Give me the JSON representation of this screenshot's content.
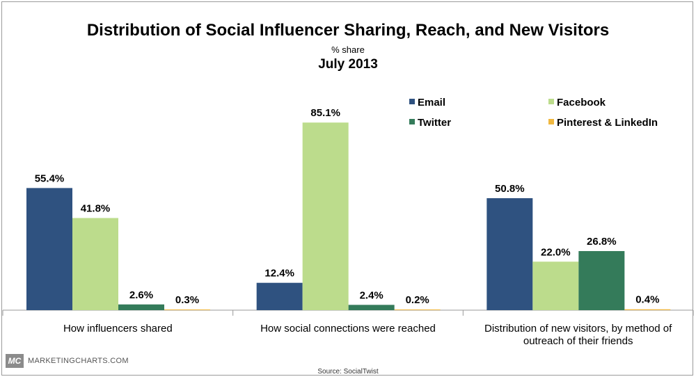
{
  "chart_data": {
    "type": "bar",
    "title": "Distribution of Social Influencer Sharing, Reach, and New Visitors",
    "subtitle": "% share",
    "subtitle2": "July 2013",
    "categories": [
      [
        "How influencers shared"
      ],
      [
        "How social connections were reached"
      ],
      [
        "Distribution of new visitors, by method of",
        "outreach of their friends"
      ]
    ],
    "series": [
      {
        "name": "Email",
        "color": "#2f5280",
        "values": [
          55.4,
          12.4,
          50.8
        ]
      },
      {
        "name": "Facebook",
        "color": "#bcdc8c",
        "values": [
          41.8,
          85.1,
          22.0
        ]
      },
      {
        "name": "Twitter",
        "color": "#347b5a",
        "values": [
          2.6,
          2.4,
          26.8
        ]
      },
      {
        "name": "Pinterest & LinkedIn",
        "color": "#f0b840",
        "values": [
          0.3,
          0.2,
          0.4
        ]
      }
    ],
    "ylim": [
      0,
      100
    ],
    "xlabel": "",
    "ylabel": "",
    "legend": "top-right",
    "grid": false
  },
  "footer": {
    "badge": "MC",
    "brand": "MARKETINGCHARTS.COM",
    "source": "Source: SocialTwist"
  }
}
